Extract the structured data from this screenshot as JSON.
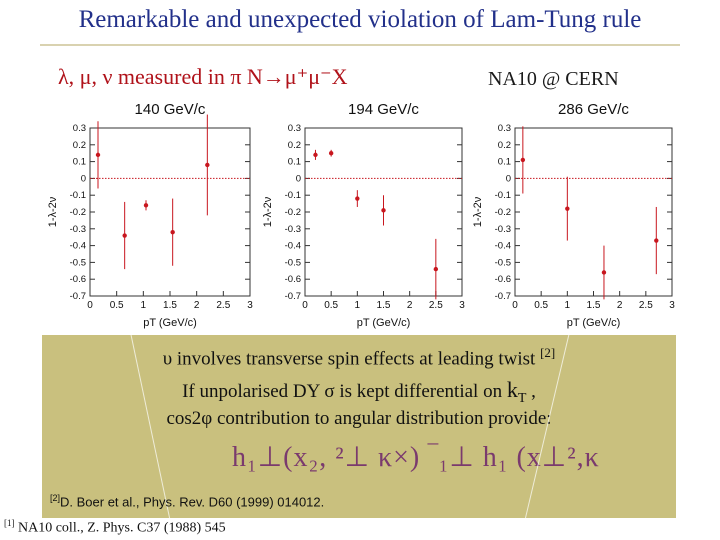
{
  "slide": {
    "title": "Remarkable and unexpected violation of Lam-Tung rule",
    "subtitle": "λ, μ, ν measured in π N→μ⁺μ⁻X",
    "experiment": "NA10 @ CERN"
  },
  "chart_data": [
    {
      "type": "scatter",
      "title": "140 GeV/c",
      "xlabel": "pT (GeV/c)",
      "ylabel": "1-λ-2ν",
      "xlim": [
        0,
        3
      ],
      "ylim": [
        -0.7,
        0.3
      ],
      "points": [
        {
          "x": 0.15,
          "y": 0.14,
          "err": 0.2
        },
        {
          "x": 0.65,
          "y": -0.34,
          "err": 0.2
        },
        {
          "x": 1.05,
          "y": -0.16,
          "err": 0.03
        },
        {
          "x": 1.55,
          "y": -0.32,
          "err": 0.2
        },
        {
          "x": 2.2,
          "y": 0.08,
          "err": 0.3
        }
      ],
      "reference_line": 0
    },
    {
      "type": "scatter",
      "title": "194 GeV/c",
      "xlabel": "pT (GeV/c)",
      "ylabel": "1-λ-2ν",
      "xlim": [
        0,
        3
      ],
      "ylim": [
        -0.7,
        0.3
      ],
      "points": [
        {
          "x": 0.2,
          "y": 0.14,
          "err": 0.03
        },
        {
          "x": 0.5,
          "y": 0.15,
          "err": 0.02
        },
        {
          "x": 1.0,
          "y": -0.12,
          "err": 0.05
        },
        {
          "x": 1.5,
          "y": -0.19,
          "err": 0.09
        },
        {
          "x": 2.5,
          "y": -0.54,
          "err": 0.18
        }
      ],
      "reference_line": 0
    },
    {
      "type": "scatter",
      "title": "286 GeV/c",
      "xlabel": "pT (GeV/c)",
      "ylabel": "1-λ-2ν",
      "xlim": [
        0,
        3
      ],
      "ylim": [
        -0.7,
        0.3
      ],
      "points": [
        {
          "x": 0.15,
          "y": 0.11,
          "err": 0.2
        },
        {
          "x": 1.0,
          "y": -0.18,
          "err": 0.19
        },
        {
          "x": 1.7,
          "y": -0.56,
          "err": 0.16
        },
        {
          "x": 2.7,
          "y": -0.37,
          "err": 0.2
        }
      ],
      "reference_line": 0
    }
  ],
  "axes": {
    "y_ticks": [
      "0.3",
      "0.2",
      "0.1",
      "0",
      "-0.1",
      "-0.2",
      "-0.3",
      "-0.4",
      "-0.5",
      "-0.6",
      "-0.7"
    ],
    "x_ticks": [
      "0",
      "0.5",
      "1",
      "1.5",
      "2",
      "2.5",
      "3"
    ]
  },
  "colors": {
    "data": "#c8161e",
    "title": "#22308a",
    "subtitle": "#b0121a",
    "box": "#c9c07e",
    "formula": "#7a3a6e"
  },
  "note": {
    "line1": "υ involves transverse spin effects at leading twist",
    "line1_ref": "[2]",
    "line2_a": "If unpolarised DY σ is kept differential on",
    "line2_k": "k",
    "line2_sub": "T",
    "line2_end": " ,",
    "line3": "cos2φ contribution to angular distribution provide:",
    "formula": "h₁⊥(x₂, ²⊥ κ×) ‾₁⊥ h₁ (x⊥²,κ"
  },
  "references": {
    "ref2_mark": "[2]",
    "ref2": "D. Boer et al., Phys. Rev. D60 (1999) 014012.",
    "ref1_mark": "[1]",
    "ref1": "NA10 coll., Z. Phys. C37 (1988) 545"
  }
}
